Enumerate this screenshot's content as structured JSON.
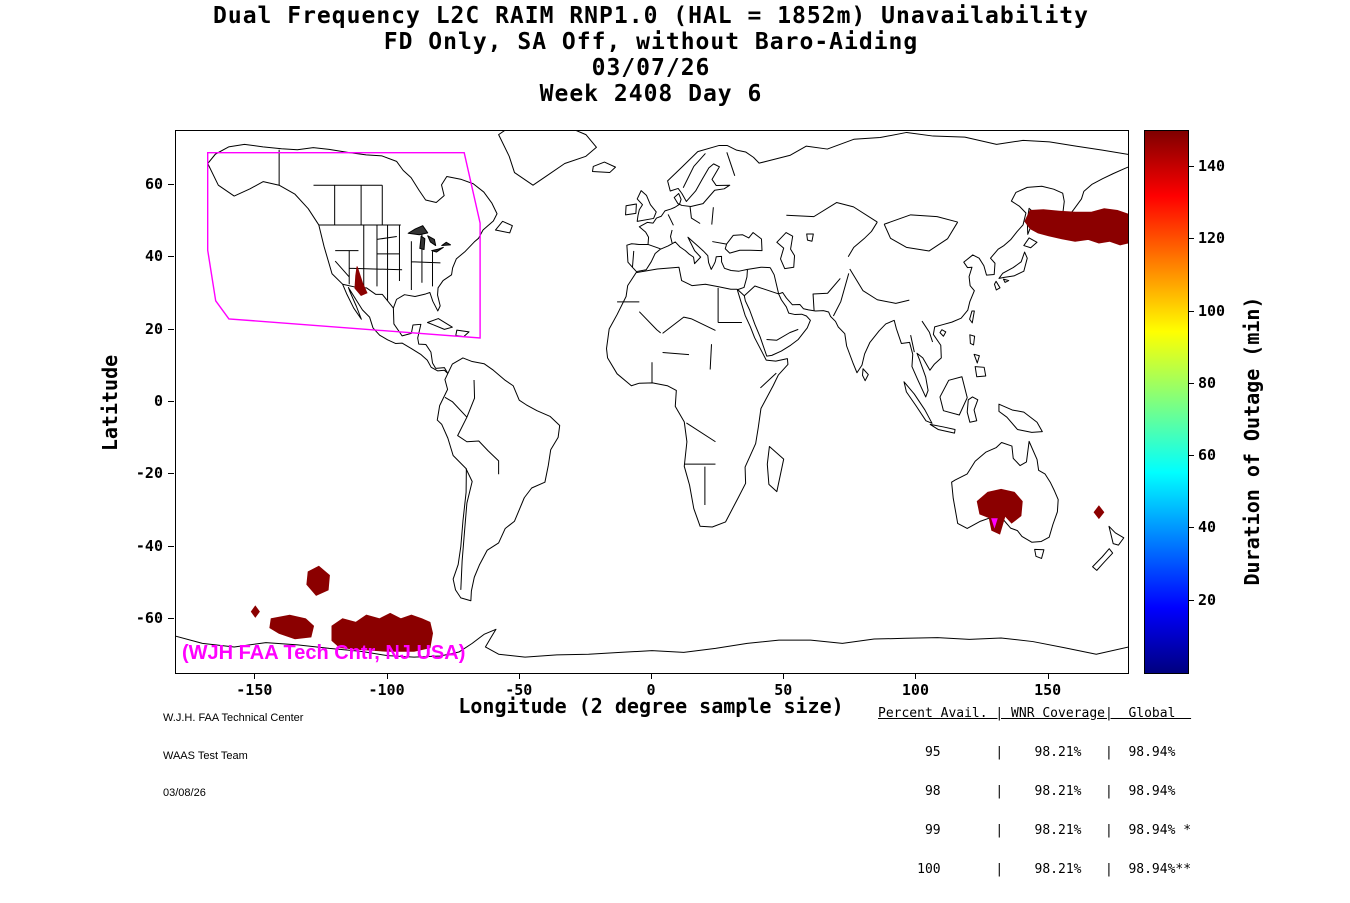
{
  "annotation": "(WJH FAA Tech Cntr, NJ USA)",
  "credit": {
    "line1": "W.J.H. FAA Technical Center",
    "line2": "WAAS Test Team",
    "line3": "03/08/26"
  },
  "stats": {
    "header": "Percent Avail. | WNR Coverage|  Global  ",
    "rows": [
      "      95       |    98.21%   |  98.94%  ",
      "      98       |    98.21%   |  98.94%  ",
      "      99       |    98.21%   |  98.94% *",
      "     100       |    98.21%   |  98.94%**"
    ]
  },
  "chart_data": {
    "type": "heatmap",
    "projection": "equirectangular",
    "title": [
      "Dual Frequency L2C RAIM RNP1.0 (HAL = 1852m) Unavailability",
      "FD Only, SA Off, without Baro-Aiding",
      "03/07/26",
      "Week 2408 Day 6"
    ],
    "xlabel": "Longitude (2 degree sample size)",
    "ylabel": "Latitude",
    "xlim": [
      -180,
      180
    ],
    "ylim": [
      -75,
      75
    ],
    "xticks": [
      -150,
      -100,
      -50,
      0,
      50,
      100,
      150
    ],
    "yticks": [
      60,
      40,
      20,
      0,
      -20,
      -40,
      -60
    ],
    "grid": false,
    "colorbar": {
      "label": "Duration of Outage (min)",
      "min": 0,
      "max": 150,
      "ticks": [
        20,
        40,
        60,
        80,
        100,
        120,
        140
      ],
      "colormap": "jet"
    },
    "outage_color": "#8b0000",
    "coverage_polygon": {
      "color": "#ff00ff",
      "points": [
        [
          -168,
          69
        ],
        [
          -71,
          69
        ],
        [
          -65,
          49.5
        ],
        [
          -65,
          17.7
        ],
        [
          -160,
          23
        ],
        [
          -165,
          28
        ],
        [
          -168,
          42
        ]
      ]
    },
    "outage_regions": [
      {
        "name": "northeast-asia",
        "color": "#8b0000",
        "points": [
          [
            141,
            50
          ],
          [
            143,
            48
          ],
          [
            146,
            46.8
          ],
          [
            150,
            46
          ],
          [
            155,
            45.2
          ],
          [
            160,
            44.5
          ],
          [
            165,
            45
          ],
          [
            169,
            44
          ],
          [
            173,
            44.5
          ],
          [
            177,
            43.5
          ],
          [
            180,
            44
          ],
          [
            180,
            52
          ],
          [
            176,
            53
          ],
          [
            171,
            53.5
          ],
          [
            166,
            52.5
          ],
          [
            160,
            52.5
          ],
          [
            154,
            52.8
          ],
          [
            148,
            53.2
          ],
          [
            143,
            53
          ]
        ]
      },
      {
        "name": "arizona",
        "color": "#8b0000",
        "points": [
          [
            -111.5,
            37.5
          ],
          [
            -109.5,
            33
          ],
          [
            -107.8,
            30.2
          ],
          [
            -110,
            29.5
          ],
          [
            -112.3,
            31.5
          ],
          [
            -112,
            35
          ]
        ]
      },
      {
        "name": "south-australia",
        "color": "#8b0000",
        "points": [
          [
            123,
            -27.5
          ],
          [
            127,
            -25
          ],
          [
            132,
            -24.2
          ],
          [
            137,
            -25
          ],
          [
            140,
            -27.5
          ],
          [
            139.5,
            -31.5
          ],
          [
            136,
            -33.5
          ],
          [
            133.5,
            -31.5
          ],
          [
            131.5,
            -36.5
          ],
          [
            128.5,
            -35.5
          ],
          [
            127.5,
            -32
          ],
          [
            124,
            -31
          ]
        ]
      },
      {
        "name": "tasman-diamond",
        "color": "#8b0000",
        "points": [
          [
            169,
            -28.8
          ],
          [
            170.8,
            -30.5
          ],
          [
            169,
            -32.2
          ],
          [
            167.2,
            -30.5
          ]
        ]
      },
      {
        "name": "south-pacific-main",
        "color": "#8b0000",
        "points": [
          [
            -121,
            -62
          ],
          [
            -117,
            -60
          ],
          [
            -112,
            -61
          ],
          [
            -108,
            -59
          ],
          [
            -103,
            -60
          ],
          [
            -99,
            -58.5
          ],
          [
            -95,
            -60
          ],
          [
            -91,
            -59
          ],
          [
            -87,
            -60
          ],
          [
            -84,
            -61
          ],
          [
            -83,
            -64
          ],
          [
            -84,
            -68
          ],
          [
            -90,
            -69
          ],
          [
            -100,
            -69
          ],
          [
            -110,
            -68.5
          ],
          [
            -118,
            -68
          ],
          [
            -121,
            -66
          ]
        ]
      },
      {
        "name": "south-pacific-west",
        "color": "#8b0000",
        "points": [
          [
            -130,
            -47
          ],
          [
            -126,
            -45.5
          ],
          [
            -122,
            -48
          ],
          [
            -122.5,
            -52
          ],
          [
            -127,
            -53.5
          ],
          [
            -130.5,
            -50.5
          ]
        ]
      },
      {
        "name": "south-pacific-small",
        "color": "#8b0000",
        "points": [
          [
            -144,
            -60
          ],
          [
            -137,
            -59
          ],
          [
            -131,
            -60
          ],
          [
            -128,
            -62
          ],
          [
            -129,
            -65
          ],
          [
            -135,
            -65.5
          ],
          [
            -141,
            -64
          ],
          [
            -144.5,
            -62.5
          ]
        ]
      },
      {
        "name": "south-pacific-dot",
        "color": "#8b0000",
        "points": [
          [
            -150,
            -56.5
          ],
          [
            -148.5,
            -58
          ],
          [
            -150,
            -59.5
          ],
          [
            -151.5,
            -58
          ]
        ]
      }
    ],
    "markers": [
      {
        "name": "south-australia-arrow",
        "color": "#ff00ff",
        "points": [
          [
            128.5,
            -32.3
          ],
          [
            130.5,
            -32.3
          ],
          [
            129.5,
            -34.6
          ]
        ]
      }
    ]
  }
}
